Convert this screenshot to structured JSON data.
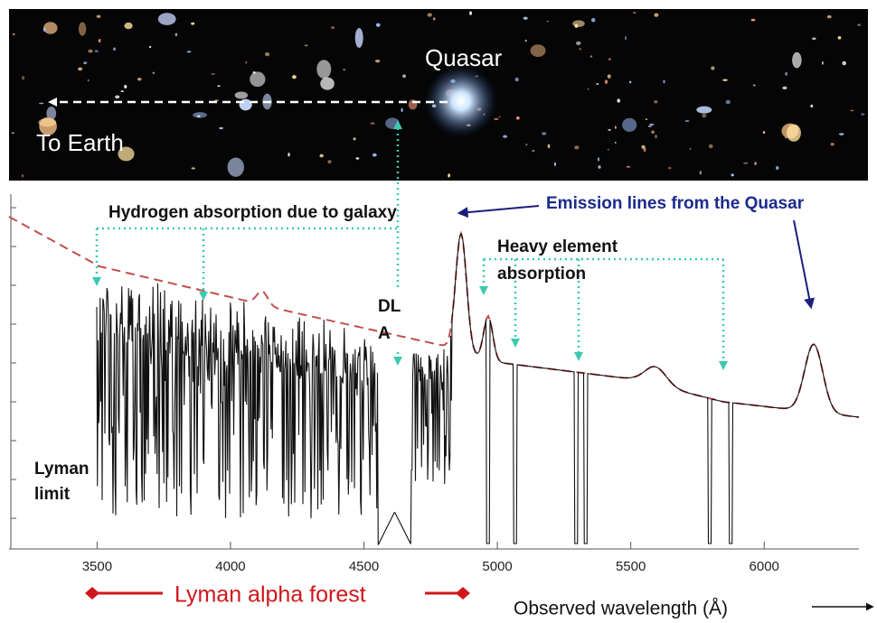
{
  "image": {
    "quasar_label": "Quasar",
    "earth_label": "To Earth"
  },
  "annotations": {
    "hydrogen": "Hydrogen absorption due to galaxy",
    "emission": "Emission lines from the Quasar",
    "heavy": [
      "Heavy element",
      "absorption"
    ],
    "dla": [
      "DL",
      "A"
    ],
    "lyman_limit": [
      "Lyman",
      "limit"
    ],
    "forest": "Lyman alpha forest"
  },
  "axis": {
    "label": "Observed wavelength (Å)",
    "xlim": [
      3170,
      6355
    ],
    "xticks": [
      3500,
      4000,
      4500,
      5000,
      5500,
      6000
    ]
  }
}
